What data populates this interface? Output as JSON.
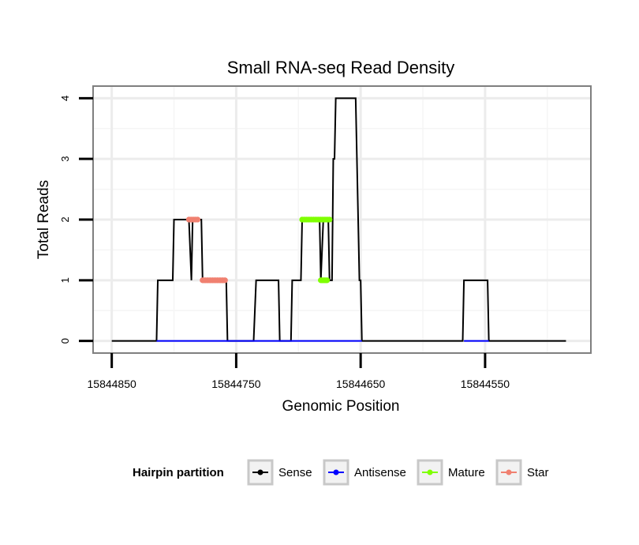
{
  "chart_data": {
    "type": "line",
    "title": "Small RNA-seq Read Density",
    "xlabel": "Genomic Position",
    "ylabel": "Total Reads",
    "x_reversed": true,
    "xlim": [
      15844865,
      15844465
    ],
    "ylim": [
      -0.2,
      4.2
    ],
    "x_ticks": [
      15844850,
      15844750,
      15844650,
      15844550
    ],
    "x_tick_labels": [
      "15844850",
      "15844750",
      "15844650",
      "15844550"
    ],
    "y_ticks": [
      0,
      1,
      2,
      3,
      4
    ],
    "y_tick_labels": [
      "0",
      "1",
      "2",
      "3",
      "4"
    ],
    "grid": true,
    "legend": {
      "title": "Hairpin partition",
      "position": "bottom",
      "entries": [
        "Sense",
        "Antisense",
        "Mature",
        "Star"
      ]
    },
    "series": [
      {
        "name": "Sense",
        "color": "#000000",
        "points": [
          [
            15844850,
            0
          ],
          [
            15844814,
            0
          ],
          [
            15844813,
            1
          ],
          [
            15844801,
            1
          ],
          [
            15844800,
            2
          ],
          [
            15844788,
            2
          ],
          [
            15844786,
            1
          ],
          [
            15844785,
            2
          ],
          [
            15844778,
            2
          ],
          [
            15844777,
            1
          ],
          [
            15844758,
            1
          ],
          [
            15844757,
            0
          ],
          [
            15844736,
            0
          ],
          [
            15844734,
            1
          ],
          [
            15844716,
            1
          ],
          [
            15844715,
            0
          ],
          [
            15844706,
            0
          ],
          [
            15844705,
            1
          ],
          [
            15844698,
            1
          ],
          [
            15844697,
            2
          ],
          [
            15844683,
            2
          ],
          [
            15844682,
            1
          ],
          [
            15844680,
            2
          ],
          [
            15844676,
            2
          ],
          [
            15844675,
            1
          ],
          [
            15844673,
            1
          ],
          [
            15844672,
            3
          ],
          [
            15844671,
            3
          ],
          [
            15844670,
            4
          ],
          [
            15844654,
            4
          ],
          [
            15844653,
            3
          ],
          [
            15844651,
            1
          ],
          [
            15844650,
            1
          ],
          [
            15844649,
            0
          ],
          [
            15844568,
            0
          ],
          [
            15844567,
            1
          ],
          [
            15844548,
            1
          ],
          [
            15844547,
            0
          ],
          [
            15844485,
            0
          ]
        ]
      },
      {
        "name": "Antisense",
        "color": "#0000ff",
        "segments": [
          [
            15844814,
            15844649
          ],
          [
            15844567,
            15844547
          ]
        ],
        "y": 0
      },
      {
        "name": "Mature",
        "color": "#7fff00",
        "segments": [
          {
            "y": 2,
            "x": [
              15844697,
              15844675
            ]
          },
          {
            "y": 1,
            "x": [
              15844682,
              15844677
            ]
          }
        ]
      },
      {
        "name": "Star",
        "color": "#f08070",
        "segments": [
          {
            "y": 2,
            "x": [
              15844788,
              15844781
            ]
          },
          {
            "y": 1,
            "x": [
              15844777,
              15844759
            ]
          }
        ]
      }
    ]
  }
}
